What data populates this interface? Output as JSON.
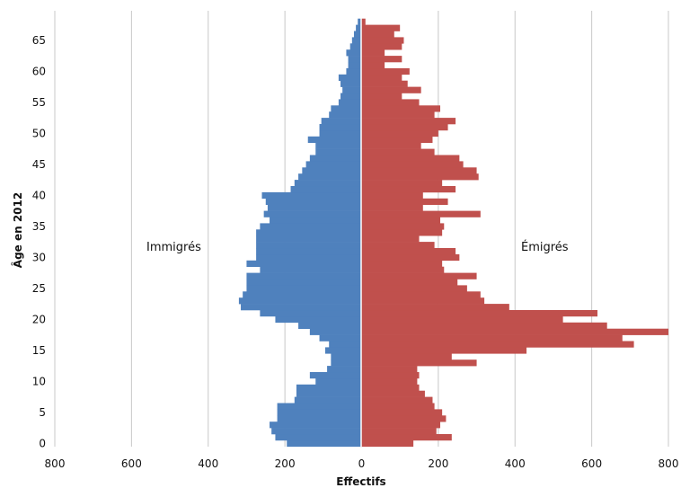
{
  "chart_data": {
    "type": "bar",
    "orientation": "horizontal",
    "layout": "population-pyramid",
    "xlabel": "Effectifs",
    "ylabel": "Âge en 2012",
    "xlim": [
      -800,
      800
    ],
    "x_ticks": [
      -800,
      -600,
      -400,
      -200,
      0,
      200,
      400,
      600,
      800
    ],
    "x_tick_labels": [
      "800",
      "600",
      "400",
      "200",
      "0",
      "200",
      "400",
      "600",
      "800"
    ],
    "y_ticks": [
      0,
      5,
      10,
      15,
      20,
      25,
      30,
      35,
      40,
      45,
      50,
      55,
      60,
      65
    ],
    "grid": {
      "vertical": true,
      "horizontal": false
    },
    "legend": "none",
    "annotations": [
      "Immigrés",
      "Émigrés"
    ],
    "ages": [
      0,
      1,
      2,
      3,
      4,
      5,
      6,
      7,
      8,
      9,
      10,
      11,
      12,
      13,
      14,
      15,
      16,
      17,
      18,
      19,
      20,
      21,
      22,
      23,
      24,
      25,
      26,
      27,
      28,
      29,
      30,
      31,
      32,
      33,
      34,
      35,
      36,
      37,
      38,
      39,
      40,
      41,
      42,
      43,
      44,
      45,
      46,
      47,
      48,
      49,
      50,
      51,
      52,
      53,
      54,
      55,
      56,
      57,
      58,
      59,
      60,
      61,
      62,
      63,
      64,
      65,
      66,
      67,
      68
    ],
    "series": [
      {
        "name": "Immigrés",
        "color": "#4f81bd",
        "values": [
          195,
          225,
          235,
          240,
          220,
          220,
          220,
          175,
          170,
          170,
          120,
          135,
          90,
          80,
          80,
          95,
          85,
          110,
          135,
          165,
          225,
          265,
          315,
          320,
          310,
          300,
          300,
          300,
          265,
          300,
          275,
          275,
          275,
          275,
          275,
          265,
          240,
          255,
          245,
          250,
          260,
          185,
          175,
          165,
          155,
          145,
          135,
          120,
          120,
          140,
          110,
          110,
          105,
          85,
          80,
          60,
          55,
          50,
          55,
          60,
          40,
          35,
          35,
          40,
          30,
          25,
          20,
          15,
          10
        ]
      },
      {
        "name": "Émigrés",
        "color": "#c0504d",
        "values": [
          135,
          235,
          195,
          205,
          220,
          210,
          190,
          185,
          165,
          150,
          145,
          150,
          145,
          300,
          235,
          430,
          710,
          680,
          800,
          640,
          525,
          615,
          385,
          320,
          310,
          275,
          250,
          300,
          215,
          210,
          255,
          245,
          190,
          150,
          210,
          215,
          205,
          310,
          160,
          225,
          160,
          245,
          210,
          305,
          300,
          265,
          255,
          190,
          155,
          185,
          200,
          225,
          245,
          190,
          205,
          150,
          105,
          155,
          120,
          105,
          125,
          60,
          105,
          60,
          105,
          110,
          85,
          100,
          10
        ]
      }
    ]
  },
  "labels": {
    "left_annotation": "Immigrés",
    "right_annotation": "Émigrés"
  }
}
